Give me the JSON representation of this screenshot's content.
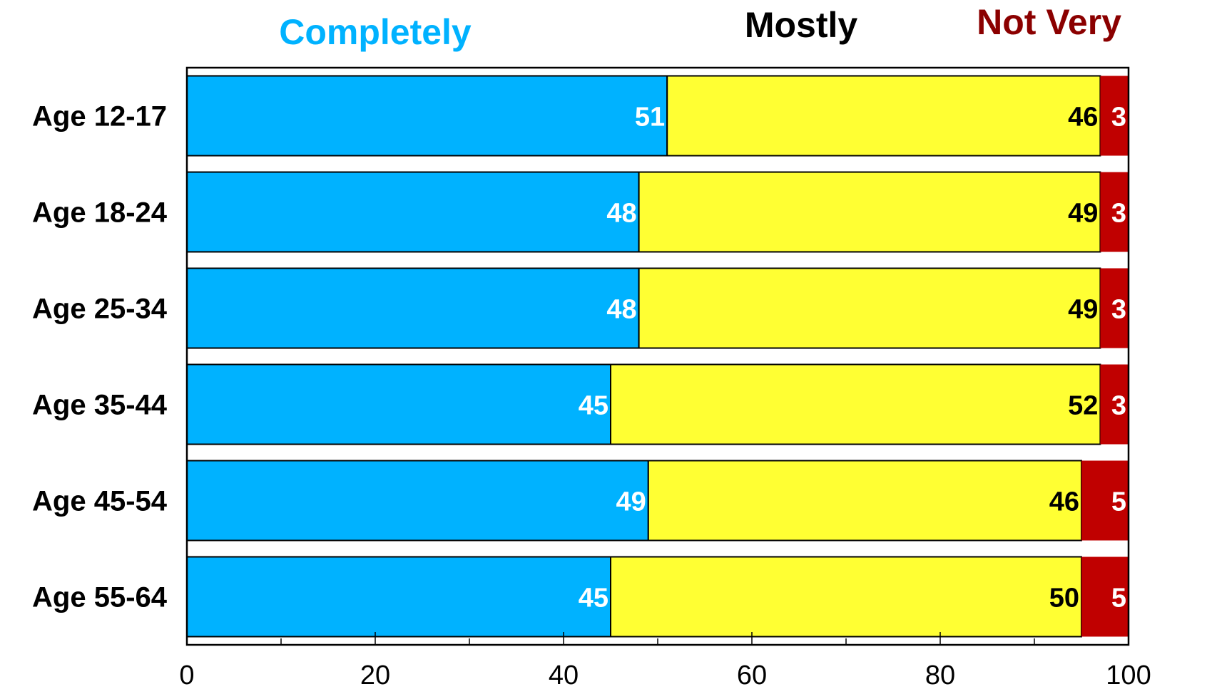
{
  "chart_data": {
    "type": "bar",
    "orientation": "horizontal",
    "stacked": true,
    "categories": [
      "Age 12-17",
      "Age 18-24",
      "Age 25-34",
      "Age 35-44",
      "Age 45-54",
      "Age 55-64"
    ],
    "series": [
      {
        "name": "Completely",
        "color": "#00b2ff",
        "label_color": "#ffffff",
        "values": [
          51,
          48,
          48,
          45,
          49,
          45
        ]
      },
      {
        "name": "Mostly",
        "color": "#ffff33",
        "label_color": "#000000",
        "values": [
          46,
          49,
          49,
          52,
          46,
          50
        ]
      },
      {
        "name": "Not Very",
        "color": "#c00000",
        "label_color": "#ffffff",
        "values": [
          3,
          3,
          3,
          3,
          5,
          5
        ]
      }
    ],
    "legend_colors": [
      "#00b2ff",
      "#000000",
      "#8b0000"
    ],
    "xlim": [
      0,
      100
    ],
    "x_ticks": [
      0,
      20,
      40,
      60,
      80,
      100
    ],
    "title": "",
    "xlabel": "",
    "ylabel": "",
    "grid": false,
    "legend_position": "top"
  }
}
